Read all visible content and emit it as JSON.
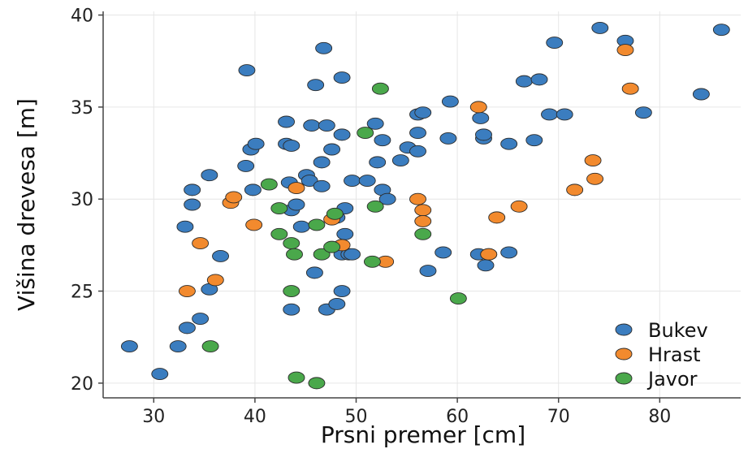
{
  "chart_data": {
    "type": "scatter",
    "title": "",
    "xlabel": "Prsni premer [cm]",
    "ylabel": "Višina drevesa [m]",
    "xlim": [
      25,
      88
    ],
    "ylim": [
      19.2,
      40.2
    ],
    "xticks": [
      30,
      40,
      50,
      60,
      70,
      80
    ],
    "yticks": [
      20,
      25,
      30,
      35,
      40
    ],
    "grid": true,
    "legend_position": "bottom-right",
    "series": [
      {
        "name": "Bukev",
        "color": "#3b7dbf",
        "points": [
          [
            27.6,
            22.0
          ],
          [
            30.6,
            20.5
          ],
          [
            32.4,
            22.0
          ],
          [
            33.3,
            23.0
          ],
          [
            33.1,
            28.5
          ],
          [
            33.8,
            29.7
          ],
          [
            33.8,
            30.5
          ],
          [
            34.6,
            23.5
          ],
          [
            35.5,
            25.1
          ],
          [
            35.5,
            31.3
          ],
          [
            36.6,
            26.9
          ],
          [
            39.2,
            37.0
          ],
          [
            39.1,
            31.8
          ],
          [
            39.6,
            32.7
          ],
          [
            39.8,
            30.5
          ],
          [
            40.1,
            33.0
          ],
          [
            43.1,
            34.2
          ],
          [
            43.1,
            33.0
          ],
          [
            43.6,
            32.9
          ],
          [
            43.4,
            30.9
          ],
          [
            43.6,
            29.4
          ],
          [
            43.6,
            24.0
          ],
          [
            44.1,
            29.7
          ],
          [
            44.6,
            28.5
          ],
          [
            45.1,
            31.3
          ],
          [
            45.4,
            31.0
          ],
          [
            46.0,
            36.2
          ],
          [
            45.9,
            26.0
          ],
          [
            45.6,
            34.0
          ],
          [
            46.6,
            32.0
          ],
          [
            46.6,
            30.7
          ],
          [
            46.8,
            38.2
          ],
          [
            47.1,
            34.0
          ],
          [
            47.1,
            24.0
          ],
          [
            47.6,
            32.7
          ],
          [
            48.1,
            29.0
          ],
          [
            48.1,
            24.3
          ],
          [
            48.6,
            36.6
          ],
          [
            48.6,
            33.5
          ],
          [
            48.6,
            25.0
          ],
          [
            48.6,
            27.0
          ],
          [
            48.9,
            29.5
          ],
          [
            48.9,
            28.1
          ],
          [
            49.3,
            27.0
          ],
          [
            49.6,
            27.0
          ],
          [
            49.6,
            31.0
          ],
          [
            51.1,
            31.0
          ],
          [
            51.9,
            34.1
          ],
          [
            52.1,
            32.0
          ],
          [
            52.6,
            30.5
          ],
          [
            52.6,
            33.2
          ],
          [
            53.1,
            30.0
          ],
          [
            54.4,
            32.1
          ],
          [
            55.1,
            32.8
          ],
          [
            56.1,
            32.6
          ],
          [
            56.1,
            34.6
          ],
          [
            56.1,
            33.6
          ],
          [
            56.6,
            34.7
          ],
          [
            57.1,
            26.1
          ],
          [
            58.6,
            27.1
          ],
          [
            59.1,
            33.3
          ],
          [
            59.3,
            35.3
          ],
          [
            62.1,
            27.0
          ],
          [
            62.3,
            34.4
          ],
          [
            62.6,
            33.3
          ],
          [
            62.6,
            33.5
          ],
          [
            62.8,
            26.4
          ],
          [
            63.1,
            27.0
          ],
          [
            65.1,
            27.1
          ],
          [
            65.1,
            33.0
          ],
          [
            66.6,
            36.4
          ],
          [
            67.6,
            33.2
          ],
          [
            68.1,
            36.5
          ],
          [
            69.1,
            34.6
          ],
          [
            69.6,
            38.5
          ],
          [
            70.6,
            34.6
          ],
          [
            74.1,
            39.3
          ],
          [
            76.6,
            38.6
          ],
          [
            78.4,
            34.7
          ],
          [
            84.1,
            35.7
          ],
          [
            86.1,
            39.2
          ]
        ]
      },
      {
        "name": "Hrast",
        "color": "#f28a2e",
        "points": [
          [
            33.3,
            25.0
          ],
          [
            34.6,
            27.6
          ],
          [
            36.1,
            25.6
          ],
          [
            37.6,
            29.8
          ],
          [
            37.9,
            30.1
          ],
          [
            39.9,
            28.6
          ],
          [
            44.1,
            30.6
          ],
          [
            47.6,
            28.9
          ],
          [
            48.6,
            27.5
          ],
          [
            52.9,
            26.6
          ],
          [
            56.1,
            30.0
          ],
          [
            56.6,
            29.4
          ],
          [
            56.6,
            28.8
          ],
          [
            62.1,
            35.0
          ],
          [
            63.1,
            27.0
          ],
          [
            63.9,
            29.0
          ],
          [
            66.1,
            29.6
          ],
          [
            71.6,
            30.5
          ],
          [
            73.4,
            32.1
          ],
          [
            73.6,
            31.1
          ],
          [
            76.6,
            38.1
          ],
          [
            77.1,
            36.0
          ]
        ]
      },
      {
        "name": "Javor",
        "color": "#4aa84b",
        "points": [
          [
            35.6,
            22.0
          ],
          [
            41.4,
            30.8
          ],
          [
            42.4,
            29.5
          ],
          [
            42.4,
            28.1
          ],
          [
            43.6,
            27.6
          ],
          [
            43.6,
            25.0
          ],
          [
            43.9,
            27.0
          ],
          [
            44.1,
            20.3
          ],
          [
            46.1,
            28.6
          ],
          [
            46.1,
            20.0
          ],
          [
            46.6,
            27.0
          ],
          [
            47.6,
            27.4
          ],
          [
            47.9,
            29.2
          ],
          [
            50.9,
            33.6
          ],
          [
            51.6,
            26.6
          ],
          [
            51.9,
            29.6
          ],
          [
            52.4,
            36.0
          ],
          [
            56.6,
            28.1
          ],
          [
            60.1,
            24.6
          ]
        ]
      }
    ]
  }
}
